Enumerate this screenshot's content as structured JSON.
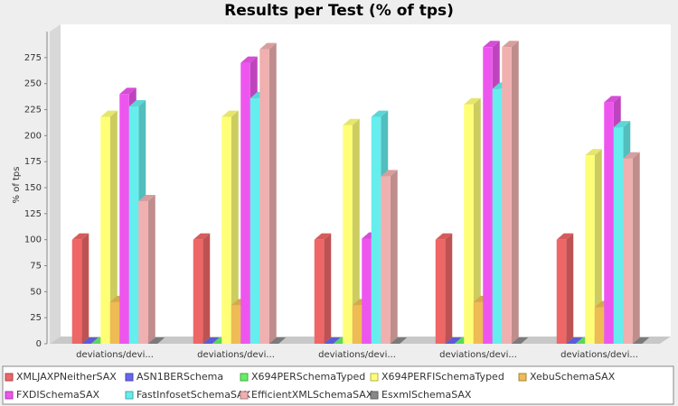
{
  "chart_data": {
    "type": "bar3d",
    "title": "Results per Test (% of tps)",
    "y_label": "% of tps",
    "categories": [
      "deviations/devi...",
      "deviations/devi...",
      "deviations/devi...",
      "deviations/devi...",
      "deviations/devi..."
    ],
    "series": [
      {
        "name": "XMLJAXPNeitherSAX",
        "color": "#ee6666",
        "values": [
          100,
          100,
          100,
          100,
          100
        ]
      },
      {
        "name": "ASN1BERSchema",
        "color": "#6666ee",
        "values": [
          0,
          0,
          0,
          0,
          0
        ]
      },
      {
        "name": "X694PERSchemaTyped",
        "color": "#66ee66",
        "values": [
          0,
          0,
          0,
          0,
          0
        ]
      },
      {
        "name": "X694PERFISchemaTyped",
        "color": "#ffff77",
        "values": [
          218,
          218,
          210,
          230,
          181
        ]
      },
      {
        "name": "XebuSchemaSAX",
        "color": "#eebb55",
        "values": [
          40,
          37,
          37,
          40,
          35
        ]
      },
      {
        "name": "FXDISchemaSAX",
        "color": "#ee55ee",
        "values": [
          240,
          270,
          101,
          285,
          232
        ]
      },
      {
        "name": "FastInfosetSchemaSAX",
        "color": "#66eeee",
        "values": [
          228,
          236,
          218,
          245,
          208
        ]
      },
      {
        "name": "EfficientXMLSchemaSAX",
        "color": "#f0b0b0",
        "values": [
          137,
          283,
          161,
          285,
          178
        ]
      },
      {
        "name": "EsxmlSchemaSAX",
        "color": "#888888",
        "values": [
          0,
          0,
          0,
          0,
          0
        ]
      }
    ],
    "ylim": [
      0,
      300
    ],
    "yticks": [
      0,
      25,
      50,
      75,
      100,
      125,
      150,
      175,
      200,
      225,
      250,
      275
    ]
  }
}
